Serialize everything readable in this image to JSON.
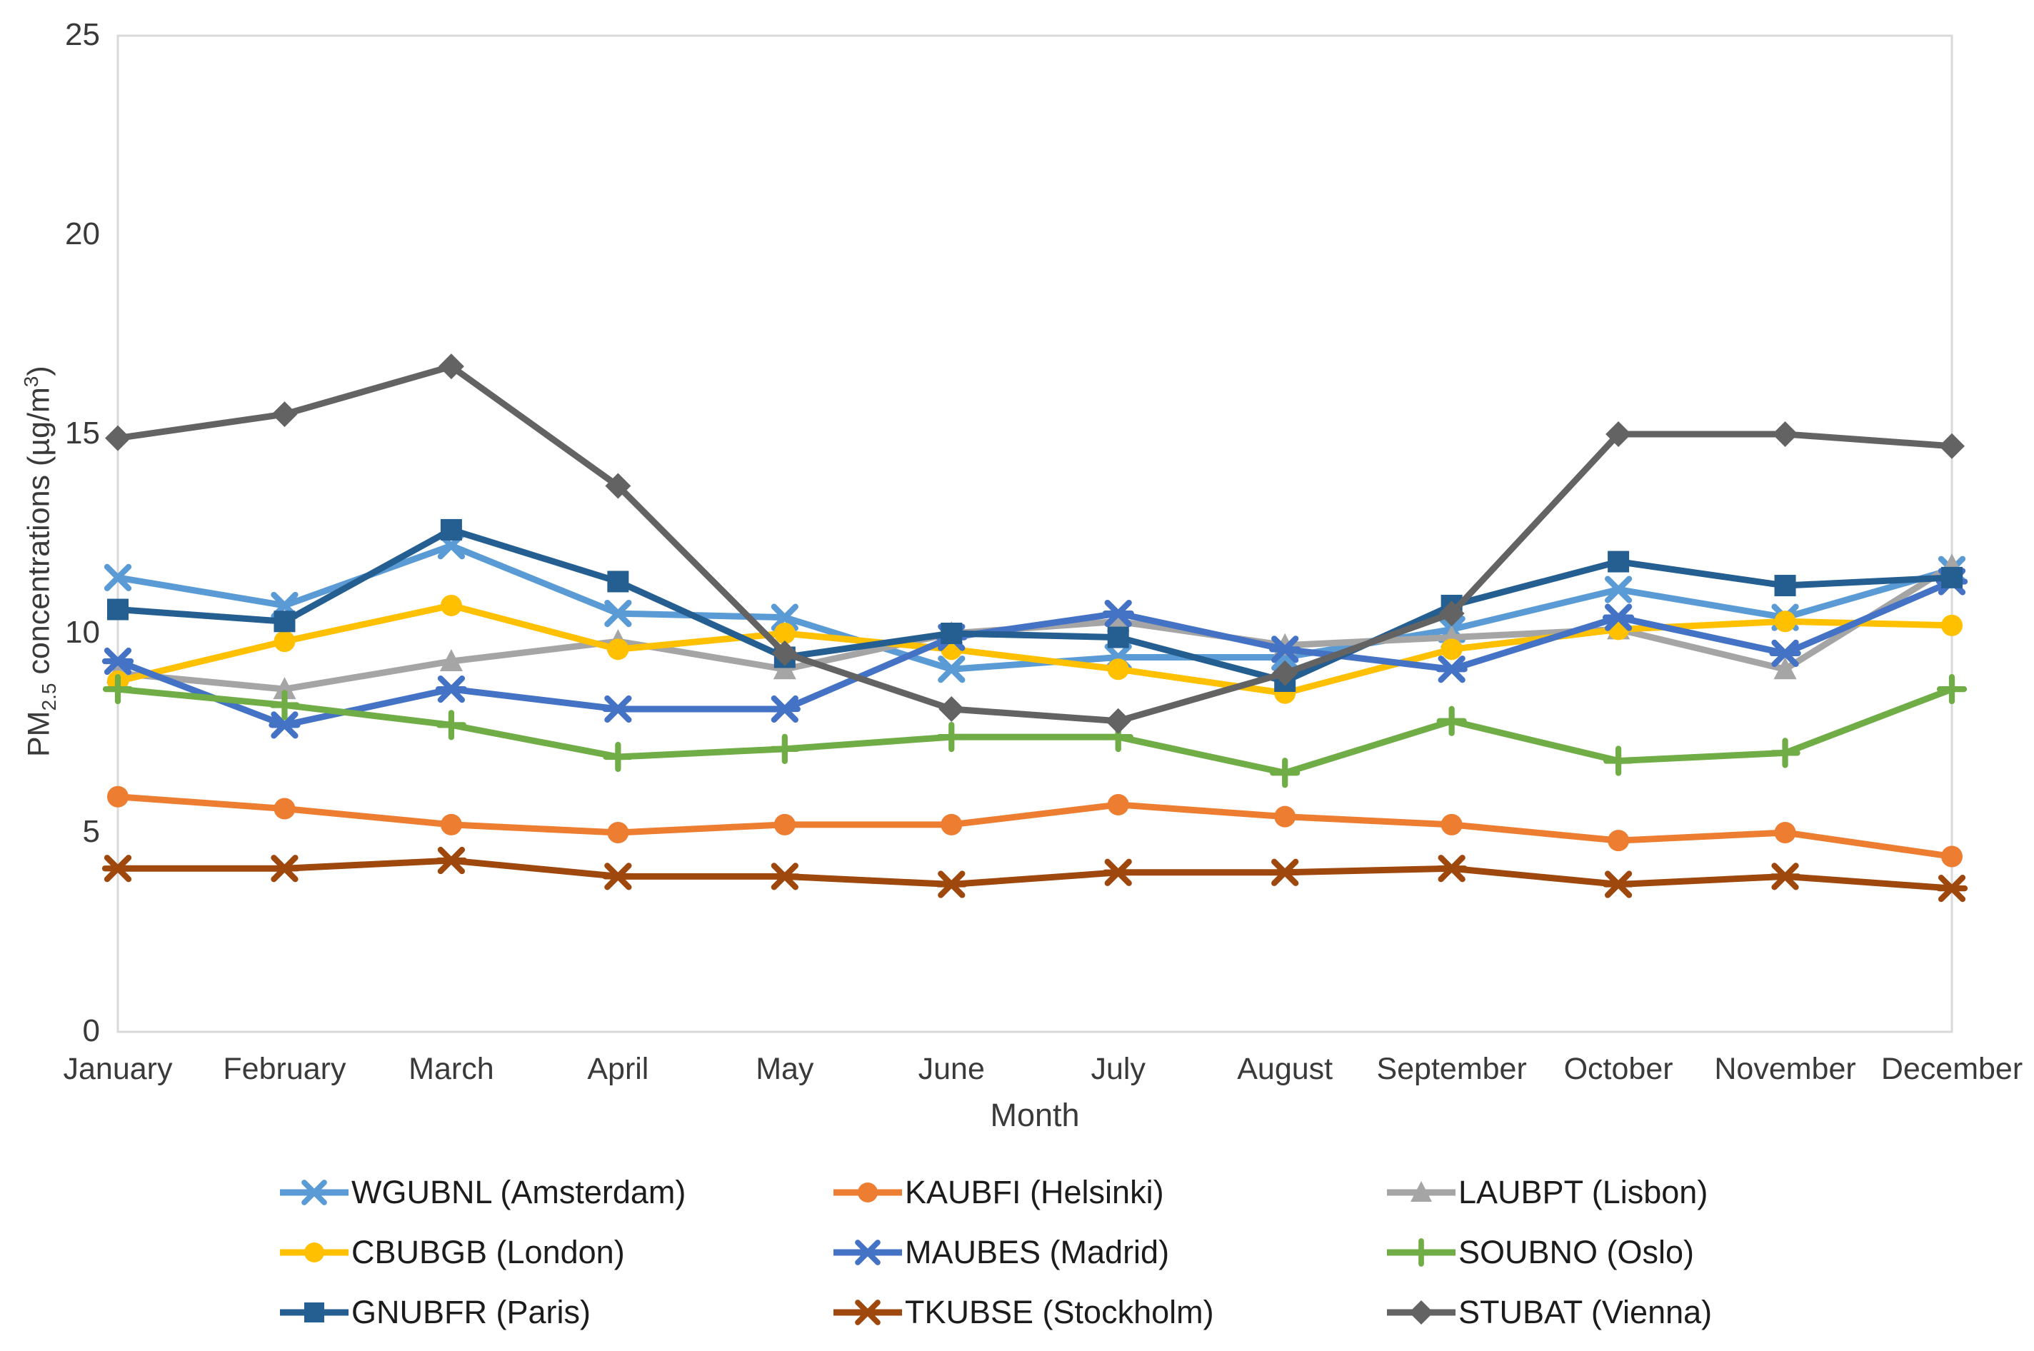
{
  "chart_data": {
    "type": "line",
    "title": "",
    "xlabel": "Month",
    "ylabel": "PM2.5 concentrations (µg/m³)",
    "ylabel_parts": {
      "prefix": "PM",
      "sub": "2.5",
      "mid": " concentrations (µg/m",
      "sup": "3",
      "suffix": ")"
    },
    "ylim": [
      0,
      25
    ],
    "yticks": [
      0,
      5,
      10,
      15,
      20,
      25
    ],
    "grid": false,
    "legend_position": "bottom",
    "background": "#ffffff",
    "axis_color": "#D9D9D9",
    "categories": [
      "January",
      "February",
      "March",
      "April",
      "May",
      "June",
      "July",
      "August",
      "September",
      "October",
      "November",
      "December"
    ],
    "series": [
      {
        "id": "wgubnl",
        "label": "WGUBNL (Amsterdam)",
        "color": "#5B9BD5",
        "marker": "x",
        "values": [
          11.4,
          10.7,
          12.2,
          10.5,
          10.4,
          9.1,
          9.4,
          9.4,
          10.1,
          11.1,
          10.4,
          11.6
        ]
      },
      {
        "id": "kaubfi",
        "label": "KAUBFI (Helsinki)",
        "color": "#ED7D31",
        "marker": "circle",
        "values": [
          5.9,
          5.6,
          5.2,
          5.0,
          5.2,
          5.2,
          5.7,
          5.4,
          5.2,
          4.8,
          5.0,
          4.4
        ]
      },
      {
        "id": "laubpt",
        "label": "LAUBPT (Lisbon)",
        "color": "#A5A5A5",
        "marker": "triangle",
        "values": [
          9.0,
          8.6,
          9.3,
          9.8,
          9.1,
          10.0,
          10.3,
          9.7,
          9.9,
          10.1,
          9.1,
          11.7
        ]
      },
      {
        "id": "cbubgb",
        "label": "CBUBGB (London)",
        "color": "#FFC000",
        "marker": "circle",
        "values": [
          8.8,
          9.8,
          10.7,
          9.6,
          10.0,
          9.6,
          9.1,
          8.5,
          9.6,
          10.1,
          10.3,
          10.2
        ]
      },
      {
        "id": "maubes",
        "label": "MAUBES (Madrid)",
        "color": "#4472C4",
        "marker": "star",
        "values": [
          9.3,
          7.7,
          8.6,
          8.1,
          8.1,
          9.9,
          10.5,
          9.6,
          9.1,
          10.4,
          9.5,
          11.3
        ]
      },
      {
        "id": "soubno",
        "label": "SOUBNO (Oslo)",
        "color": "#70AD47",
        "marker": "plus",
        "values": [
          8.6,
          8.2,
          7.7,
          6.9,
          7.1,
          7.4,
          7.4,
          6.5,
          7.8,
          6.8,
          7.0,
          8.6
        ]
      },
      {
        "id": "gnubfr",
        "label": "GNUBFR (Paris)",
        "color": "#255E91",
        "marker": "square",
        "values": [
          10.6,
          10.3,
          12.6,
          11.3,
          9.4,
          10.0,
          9.9,
          8.8,
          10.7,
          11.8,
          11.2,
          11.4
        ]
      },
      {
        "id": "tkubse",
        "label": "TKUBSE (Stockholm)",
        "color": "#9E480E",
        "marker": "star",
        "values": [
          4.1,
          4.1,
          4.3,
          3.9,
          3.9,
          3.7,
          4.0,
          4.0,
          4.1,
          3.7,
          3.9,
          3.6
        ]
      },
      {
        "id": "stubat",
        "label": "STUBAT (Vienna)",
        "color": "#636363",
        "marker": "diamond",
        "values": [
          14.9,
          15.5,
          16.7,
          13.7,
          9.5,
          8.1,
          7.8,
          9.0,
          10.5,
          15.0,
          15.0,
          14.7
        ]
      }
    ]
  }
}
